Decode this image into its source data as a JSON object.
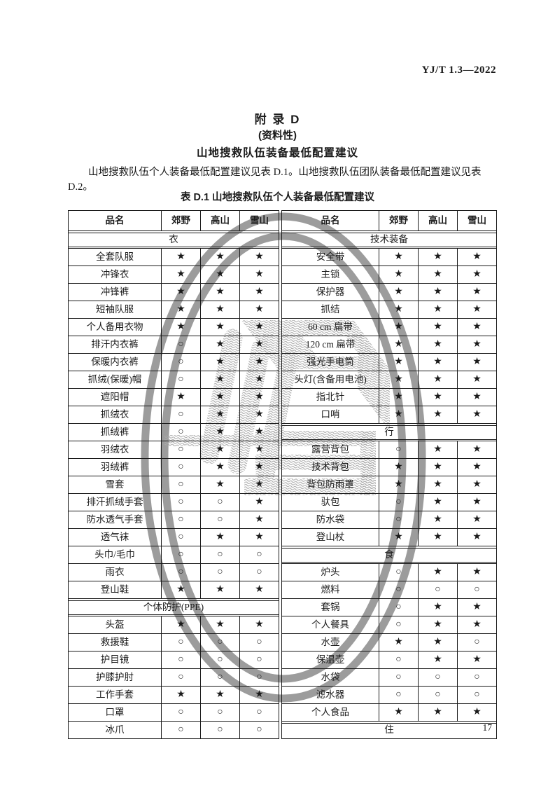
{
  "colors": {
    "ink": "#1a1a1a",
    "ring": "#9c9c9c",
    "hatch": "#a9a9a9"
  },
  "header": {
    "standard_number": "YJ/T 1.3—2022"
  },
  "appendix": {
    "label": "附  录  D",
    "note": "(资料性)",
    "title": "山地搜救队伍装备最低配置建议",
    "intro": "山地搜救队伍个人装备最低配置建议见表 D.1。山地搜救队伍团队装备最低配置建议见表 D.2。",
    "table_caption": "表 D.1  山地搜救队伍个人装备最低配置建议"
  },
  "table": {
    "columns": [
      "品名",
      "郊野",
      "高山",
      "雪山"
    ],
    "left_rows": [
      {
        "type": "section",
        "label": "衣"
      },
      {
        "type": "item",
        "name": "全套队服",
        "values": [
          "★",
          "★",
          "★"
        ]
      },
      {
        "type": "item",
        "name": "冲锋衣",
        "values": [
          "★",
          "★",
          "★"
        ]
      },
      {
        "type": "item",
        "name": "冲锋裤",
        "values": [
          "★",
          "★",
          "★"
        ]
      },
      {
        "type": "item",
        "name": "短袖队服",
        "values": [
          "★",
          "★",
          "★"
        ]
      },
      {
        "type": "item",
        "name": "个人备用衣物",
        "values": [
          "★",
          "★",
          "★"
        ]
      },
      {
        "type": "item",
        "name": "排汗内衣裤",
        "values": [
          "○",
          "★",
          "★"
        ]
      },
      {
        "type": "item",
        "name": "保暖内衣裤",
        "values": [
          "○",
          "★",
          "★"
        ]
      },
      {
        "type": "item",
        "name": "抓绒(保暖)帽",
        "values": [
          "○",
          "★",
          "★"
        ]
      },
      {
        "type": "item",
        "name": "遮阳帽",
        "values": [
          "★",
          "★",
          "★"
        ]
      },
      {
        "type": "item",
        "name": "抓绒衣",
        "values": [
          "○",
          "★",
          "★"
        ]
      },
      {
        "type": "item",
        "name": "抓绒裤",
        "values": [
          "○",
          "★",
          "★"
        ]
      },
      {
        "type": "item",
        "name": "羽绒衣",
        "values": [
          "○",
          "★",
          "★"
        ]
      },
      {
        "type": "item",
        "name": "羽绒裤",
        "values": [
          "○",
          "★",
          "★"
        ]
      },
      {
        "type": "item",
        "name": "雪套",
        "values": [
          "○",
          "★",
          "★"
        ]
      },
      {
        "type": "item",
        "name": "排汗抓绒手套",
        "values": [
          "○",
          "○",
          "★"
        ]
      },
      {
        "type": "item",
        "name": "防水透气手套",
        "values": [
          "○",
          "○",
          "★"
        ]
      },
      {
        "type": "item",
        "name": "透气袜",
        "values": [
          "○",
          "★",
          "★"
        ]
      },
      {
        "type": "item",
        "name": "头巾/毛巾",
        "values": [
          "○",
          "○",
          "○"
        ]
      },
      {
        "type": "item",
        "name": "雨衣",
        "values": [
          "○",
          "○",
          "○"
        ]
      },
      {
        "type": "item",
        "name": "登山鞋",
        "values": [
          "★",
          "★",
          "★"
        ]
      },
      {
        "type": "section",
        "label": "个体防护(PPE)"
      },
      {
        "type": "item",
        "name": "头盔",
        "values": [
          "★",
          "★",
          "★"
        ]
      },
      {
        "type": "item",
        "name": "救援鞋",
        "values": [
          "○",
          "○",
          "○"
        ]
      },
      {
        "type": "item",
        "name": "护目镜",
        "values": [
          "○",
          "○",
          "○"
        ]
      },
      {
        "type": "item",
        "name": "护膝护肘",
        "values": [
          "○",
          "○",
          "○"
        ]
      },
      {
        "type": "item",
        "name": "工作手套",
        "values": [
          "★",
          "★",
          "★"
        ]
      },
      {
        "type": "item",
        "name": "口罩",
        "values": [
          "○",
          "○",
          "○"
        ]
      },
      {
        "type": "item",
        "name": "冰爪",
        "values": [
          "○",
          "○",
          "○"
        ]
      }
    ],
    "right_rows": [
      {
        "type": "section",
        "label": "技术装备"
      },
      {
        "type": "item",
        "name": "安全带",
        "values": [
          "★",
          "★",
          "★"
        ]
      },
      {
        "type": "item",
        "name": "主锁",
        "values": [
          "★",
          "★",
          "★"
        ]
      },
      {
        "type": "item",
        "name": "保护器",
        "values": [
          "★",
          "★",
          "★"
        ]
      },
      {
        "type": "item",
        "name": "抓结",
        "values": [
          "★",
          "★",
          "★"
        ]
      },
      {
        "type": "item",
        "name": "60 cm 扁带",
        "values": [
          "★",
          "★",
          "★"
        ]
      },
      {
        "type": "item",
        "name": "120 cm 扁带",
        "values": [
          "★",
          "★",
          "★"
        ]
      },
      {
        "type": "item",
        "name": "强光手电筒",
        "values": [
          "★",
          "★",
          "★"
        ]
      },
      {
        "type": "item",
        "name": "头灯(含备用电池)",
        "values": [
          "★",
          "★",
          "★"
        ]
      },
      {
        "type": "item",
        "name": "指北针",
        "values": [
          "★",
          "★",
          "★"
        ]
      },
      {
        "type": "item",
        "name": "口哨",
        "values": [
          "★",
          "★",
          "★"
        ]
      },
      {
        "type": "section",
        "label": "行"
      },
      {
        "type": "item",
        "name": "露营背包",
        "values": [
          "○",
          "★",
          "★"
        ]
      },
      {
        "type": "item",
        "name": "技术背包",
        "values": [
          "★",
          "★",
          "★"
        ]
      },
      {
        "type": "item",
        "name": "背包防雨罩",
        "values": [
          "★",
          "★",
          "★"
        ]
      },
      {
        "type": "item",
        "name": "驮包",
        "values": [
          "○",
          "★",
          "★"
        ]
      },
      {
        "type": "item",
        "name": "防水袋",
        "values": [
          "○",
          "★",
          "★"
        ]
      },
      {
        "type": "item",
        "name": "登山杖",
        "values": [
          "★",
          "★",
          "★"
        ]
      },
      {
        "type": "section",
        "label": "食"
      },
      {
        "type": "item",
        "name": "炉头",
        "values": [
          "○",
          "★",
          "★"
        ]
      },
      {
        "type": "item",
        "name": "燃料",
        "values": [
          "○",
          "○",
          "○"
        ]
      },
      {
        "type": "item",
        "name": "套锅",
        "values": [
          "○",
          "★",
          "★"
        ]
      },
      {
        "type": "item",
        "name": "个人餐具",
        "values": [
          "○",
          "★",
          "★"
        ]
      },
      {
        "type": "item",
        "name": "水壶",
        "values": [
          "★",
          "★",
          "○"
        ]
      },
      {
        "type": "item",
        "name": "保温壶",
        "values": [
          "○",
          "★",
          "★"
        ]
      },
      {
        "type": "item",
        "name": "水袋",
        "values": [
          "○",
          "○",
          "○"
        ]
      },
      {
        "type": "item",
        "name": "滤水器",
        "values": [
          "○",
          "○",
          "○"
        ]
      },
      {
        "type": "item",
        "name": "个人食品",
        "values": [
          "★",
          "★",
          "★"
        ]
      },
      {
        "type": "section",
        "label": "住"
      }
    ]
  },
  "footer": {
    "page_number": "17"
  }
}
